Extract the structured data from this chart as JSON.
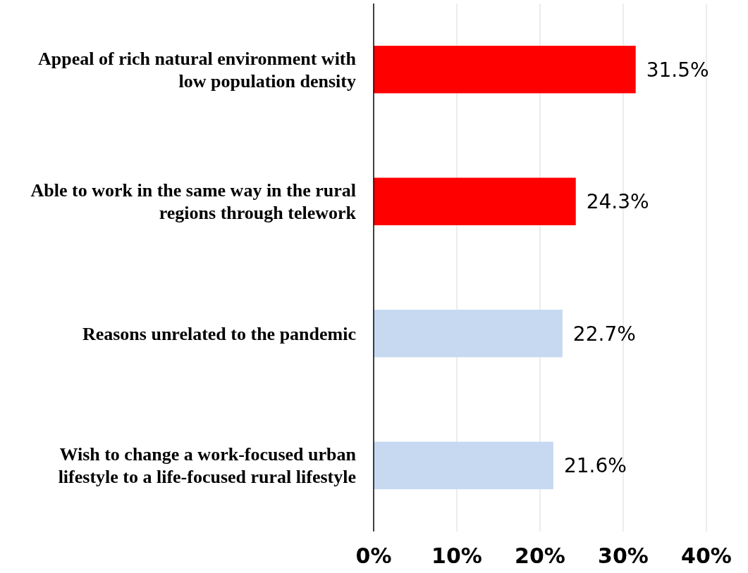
{
  "chart_data": {
    "type": "bar",
    "orientation": "horizontal",
    "categories": [
      "Appeal of rich natural environment with low population density",
      "Able to work in the same way in the rural regions through telework",
      "Reasons unrelated to the pandemic",
      "Wish to change a work-focused urban lifestyle to a life-focused rural lifestyle"
    ],
    "values": [
      31.5,
      24.3,
      22.7,
      21.6
    ],
    "colors": [
      "#ff0000",
      "#ff0000",
      "#c6d9f1",
      "#c6d9f1"
    ],
    "value_labels": [
      "31.5%",
      "24.3%",
      "22.7%",
      "21.6%"
    ],
    "xlim": [
      0,
      40
    ],
    "xticks": [
      {
        "value": 0,
        "label": "0%"
      },
      {
        "value": 10,
        "label": "10%"
      },
      {
        "value": 20,
        "label": "20%"
      },
      {
        "value": 30,
        "label": "30%"
      },
      {
        "value": 40,
        "label": "40%"
      }
    ],
    "grid": "x"
  }
}
